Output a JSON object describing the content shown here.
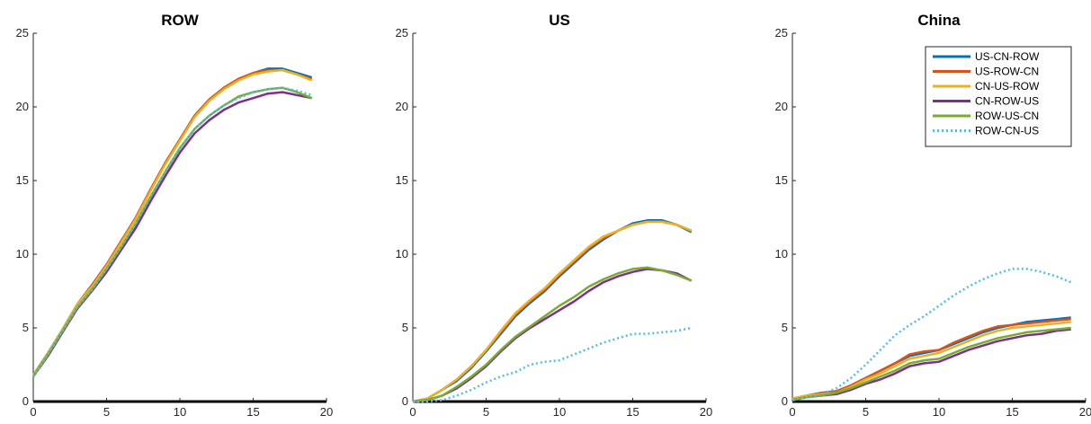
{
  "chart_data": [
    {
      "type": "line",
      "title": "ROW",
      "xlim": [
        0,
        20
      ],
      "ylim": [
        0,
        25
      ],
      "xticks": [
        "0",
        "5",
        "10",
        "15",
        "20"
      ],
      "yticks": [
        "0",
        "5",
        "10",
        "15",
        "20",
        "25"
      ],
      "x": [
        0,
        1,
        2,
        3,
        4,
        5,
        6,
        7,
        8,
        9,
        10,
        11,
        12,
        13,
        14,
        15,
        16,
        17,
        18,
        19
      ],
      "series": [
        {
          "name": "US-CN-ROW",
          "values": [
            1.8,
            3.3,
            4.9,
            6.6,
            7.9,
            9.3,
            10.9,
            12.5,
            14.4,
            16.2,
            17.8,
            19.4,
            20.5,
            21.3,
            21.9,
            22.3,
            22.6,
            22.6,
            22.3,
            22.0
          ]
        },
        {
          "name": "US-ROW-CN",
          "values": [
            1.8,
            3.3,
            4.9,
            6.6,
            7.9,
            9.3,
            10.9,
            12.5,
            14.4,
            16.2,
            17.8,
            19.4,
            20.5,
            21.3,
            21.9,
            22.3,
            22.5,
            22.5,
            22.2,
            21.9
          ]
        },
        {
          "name": "CN-US-ROW",
          "values": [
            1.8,
            3.3,
            4.9,
            6.6,
            7.8,
            9.2,
            10.8,
            12.4,
            14.3,
            16.1,
            17.7,
            19.3,
            20.4,
            21.2,
            21.8,
            22.2,
            22.4,
            22.5,
            22.2,
            21.8
          ]
        },
        {
          "name": "CN-ROW-US",
          "values": [
            1.7,
            3.1,
            4.7,
            6.3,
            7.5,
            8.8,
            10.3,
            11.8,
            13.6,
            15.3,
            16.9,
            18.2,
            19.1,
            19.8,
            20.3,
            20.6,
            20.9,
            21.0,
            20.8,
            20.6
          ]
        },
        {
          "name": "ROW-US-CN",
          "values": [
            1.7,
            3.2,
            4.8,
            6.4,
            7.6,
            9.0,
            10.5,
            12.1,
            13.9,
            15.6,
            17.2,
            18.5,
            19.4,
            20.1,
            20.7,
            21.0,
            21.2,
            21.3,
            21.0,
            20.6
          ]
        },
        {
          "name": "ROW-CN-US",
          "values": [
            1.7,
            3.2,
            4.8,
            6.4,
            7.6,
            9.0,
            10.5,
            12.1,
            13.9,
            15.6,
            17.2,
            18.5,
            19.4,
            20.1,
            20.6,
            21.0,
            21.2,
            21.3,
            21.1,
            20.8
          ]
        }
      ]
    },
    {
      "type": "line",
      "title": "US",
      "xlim": [
        0,
        20
      ],
      "ylim": [
        0,
        25
      ],
      "xticks": [
        "0",
        "5",
        "10",
        "15",
        "20"
      ],
      "yticks": [
        "0",
        "5",
        "10",
        "15",
        "20",
        "25"
      ],
      "x": [
        0,
        1,
        2,
        3,
        4,
        5,
        6,
        7,
        8,
        9,
        10,
        11,
        12,
        13,
        14,
        15,
        16,
        17,
        18,
        19
      ],
      "series": [
        {
          "name": "US-CN-ROW",
          "values": [
            0.0,
            0.2,
            0.8,
            1.4,
            2.3,
            3.4,
            4.6,
            5.8,
            6.7,
            7.5,
            8.5,
            9.4,
            10.3,
            11.0,
            11.6,
            12.1,
            12.3,
            12.3,
            12.0,
            11.5
          ]
        },
        {
          "name": "US-ROW-CN",
          "values": [
            0.0,
            0.2,
            0.8,
            1.5,
            2.4,
            3.5,
            4.7,
            5.9,
            6.8,
            7.6,
            8.6,
            9.5,
            10.4,
            11.1,
            11.6,
            12.0,
            12.2,
            12.2,
            12.0,
            11.6
          ]
        },
        {
          "name": "CN-US-ROW",
          "values": [
            0.0,
            0.2,
            0.8,
            1.5,
            2.4,
            3.5,
            4.8,
            6.0,
            6.9,
            7.7,
            8.7,
            9.6,
            10.5,
            11.2,
            11.6,
            12.0,
            12.2,
            12.2,
            12.0,
            11.6
          ]
        },
        {
          "name": "CN-ROW-US",
          "values": [
            0.0,
            0.1,
            0.4,
            0.9,
            1.6,
            2.4,
            3.4,
            4.3,
            5.0,
            5.6,
            6.2,
            6.8,
            7.5,
            8.1,
            8.5,
            8.8,
            9.0,
            8.9,
            8.7,
            8.2
          ]
        },
        {
          "name": "ROW-US-CN",
          "values": [
            0.0,
            0.1,
            0.4,
            1.0,
            1.7,
            2.5,
            3.5,
            4.4,
            5.1,
            5.8,
            6.5,
            7.1,
            7.8,
            8.3,
            8.7,
            9.0,
            9.1,
            8.9,
            8.6,
            8.2
          ]
        },
        {
          "name": "ROW-CN-US",
          "values": [
            0.0,
            0.0,
            0.1,
            0.4,
            0.8,
            1.3,
            1.7,
            2.0,
            2.5,
            2.7,
            2.8,
            3.2,
            3.6,
            4.0,
            4.3,
            4.6,
            4.6,
            4.7,
            4.8,
            5.0
          ]
        }
      ]
    },
    {
      "type": "line",
      "title": "China",
      "xlim": [
        0,
        20
      ],
      "ylim": [
        0,
        25
      ],
      "xticks": [
        "0",
        "5",
        "10",
        "15",
        "20"
      ],
      "yticks": [
        "0",
        "5",
        "10",
        "15",
        "20",
        "25"
      ],
      "legend": {
        "position": "top-right"
      },
      "x": [
        0,
        1,
        2,
        3,
        4,
        5,
        6,
        7,
        8,
        9,
        10,
        11,
        12,
        13,
        14,
        15,
        16,
        17,
        18,
        19
      ],
      "series": [
        {
          "name": "US-CN-ROW",
          "color": "#0072BD",
          "dash": "solid",
          "values": [
            0.2,
            0.4,
            0.6,
            0.7,
            1.1,
            1.6,
            2.1,
            2.6,
            3.1,
            3.3,
            3.5,
            3.9,
            4.3,
            4.7,
            5.0,
            5.2,
            5.4,
            5.5,
            5.6,
            5.7
          ]
        },
        {
          "name": "US-ROW-CN",
          "color": "#D95319",
          "dash": "solid",
          "values": [
            0.2,
            0.4,
            0.6,
            0.7,
            1.1,
            1.6,
            2.1,
            2.6,
            3.2,
            3.4,
            3.5,
            4.0,
            4.4,
            4.8,
            5.1,
            5.2,
            5.3,
            5.4,
            5.5,
            5.6
          ]
        },
        {
          "name": "CN-US-ROW",
          "color": "#EDB120",
          "dash": "solid",
          "values": [
            0.2,
            0.4,
            0.5,
            0.6,
            1.0,
            1.5,
            1.9,
            2.4,
            2.9,
            3.1,
            3.3,
            3.7,
            4.1,
            4.5,
            4.8,
            5.0,
            5.1,
            5.2,
            5.3,
            5.4
          ]
        },
        {
          "name": "CN-ROW-US",
          "color": "#7E2F8E",
          "dash": "solid",
          "values": [
            0.1,
            0.3,
            0.4,
            0.5,
            0.8,
            1.2,
            1.5,
            1.9,
            2.4,
            2.6,
            2.7,
            3.1,
            3.5,
            3.8,
            4.1,
            4.3,
            4.5,
            4.6,
            4.8,
            4.9
          ]
        },
        {
          "name": "ROW-US-CN",
          "color": "#77AC30",
          "dash": "solid",
          "values": [
            0.1,
            0.3,
            0.4,
            0.6,
            0.9,
            1.3,
            1.7,
            2.1,
            2.6,
            2.8,
            2.9,
            3.3,
            3.7,
            4.0,
            4.3,
            4.5,
            4.7,
            4.8,
            4.9,
            5.0
          ]
        },
        {
          "name": "ROW-CN-US",
          "color": "#4DBEEE",
          "dash": "dotted",
          "values": [
            0.1,
            0.3,
            0.5,
            0.9,
            1.6,
            2.5,
            3.5,
            4.5,
            5.2,
            5.8,
            6.5,
            7.2,
            7.8,
            8.3,
            8.7,
            9.0,
            9.0,
            8.8,
            8.5,
            8.1
          ]
        }
      ]
    }
  ],
  "colors": {
    "US-CN-ROW": "#0072BD",
    "US-ROW-CN": "#D95319",
    "CN-US-ROW": "#EDB120",
    "CN-ROW-US": "#7E2F8E",
    "ROW-US-CN": "#77AC30",
    "ROW-CN-US": "#4DBEEE"
  }
}
